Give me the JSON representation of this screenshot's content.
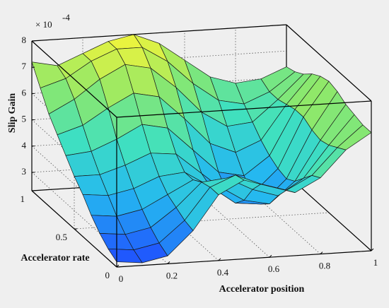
{
  "chart_data": {
    "type": "surface",
    "xlabel": "Accelerator position",
    "ylabel": "Accelerator rate",
    "zlabel": "Slip Gain",
    "zscale_base": "× 10",
    "zscale_exponent": "-4",
    "x": [
      0,
      0.1,
      0.2,
      0.3,
      0.4,
      0.5,
      0.6,
      0.7,
      0.8,
      0.9,
      1
    ],
    "y": [
      0,
      0.1,
      0.2,
      0.3,
      0.4,
      0.5,
      0.6,
      0.7,
      0.8,
      0.9,
      1
    ],
    "z": [
      [
        2.5,
        2.4,
        2.6,
        3.5,
        4.8,
        5.3,
        5.0,
        4.7,
        5.2,
        6.2,
        6.8
      ],
      [
        2.7,
        2.6,
        2.8,
        3.6,
        4.8,
        5.2,
        4.8,
        4.5,
        5.0,
        6.0,
        6.8
      ],
      [
        3.0,
        2.9,
        3.1,
        3.8,
        4.7,
        4.8,
        4.3,
        4.0,
        4.6,
        5.8,
        6.9
      ],
      [
        3.4,
        3.3,
        3.5,
        4.0,
        4.5,
        4.2,
        3.6,
        3.4,
        4.2,
        5.7,
        7.0
      ],
      [
        3.9,
        3.8,
        4.0,
        4.4,
        4.5,
        3.9,
        3.2,
        3.1,
        4.0,
        5.8,
        7.2
      ],
      [
        4.3,
        4.3,
        4.6,
        5.0,
        4.9,
        4.1,
        3.3,
        3.2,
        4.1,
        6.0,
        7.3
      ],
      [
        4.8,
        4.9,
        5.3,
        5.8,
        5.6,
        4.7,
        3.8,
        3.6,
        4.3,
        6.0,
        7.2
      ],
      [
        5.3,
        5.6,
        6.2,
        6.7,
        6.5,
        5.6,
        4.6,
        4.2,
        4.6,
        5.9,
        7.0
      ],
      [
        5.8,
        6.3,
        7.0,
        7.5,
        7.3,
        6.5,
        5.5,
        4.9,
        5.0,
        5.8,
        6.7
      ],
      [
        6.5,
        6.8,
        7.4,
        7.8,
        7.8,
        7.2,
        6.3,
        5.6,
        5.4,
        5.8,
        6.5
      ],
      [
        7.2,
        7.0,
        7.4,
        7.8,
        8.0,
        7.6,
        6.9,
        6.2,
        5.9,
        6.0,
        6.4
      ]
    ],
    "xlim": [
      0,
      1
    ],
    "ylim": [
      0,
      1
    ],
    "zlim": [
      2.3,
      8
    ],
    "xticks": [
      0,
      0.2,
      0.4,
      0.6,
      0.8,
      1
    ],
    "yticks": [
      0,
      0.5,
      1
    ],
    "zticks": [
      3,
      4,
      5,
      6,
      7,
      8
    ],
    "grid": true,
    "colormap": [
      "#1f4cff",
      "#25b8f0",
      "#3fe0c0",
      "#8ee86a",
      "#f4f43a"
    ],
    "edge_color": "#1a1a1a"
  }
}
